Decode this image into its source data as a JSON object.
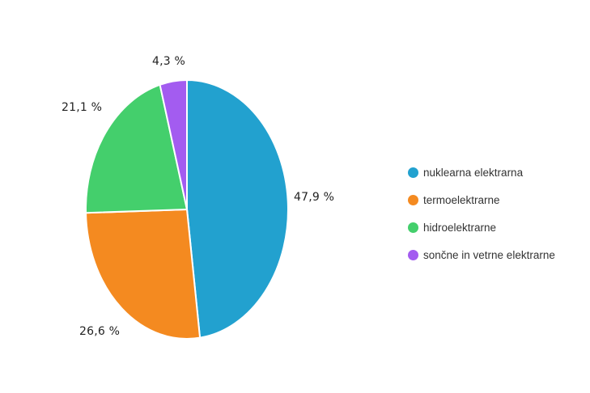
{
  "chart_data": {
    "type": "pie",
    "categories": [
      "nuklearna elektrarna",
      "termoelektrarne",
      "hidroelektrarne",
      "sončne in vetrne elektrarne"
    ],
    "values": [
      47.9,
      26.6,
      21.1,
      4.3
    ],
    "value_labels": [
      "47,9 %",
      "26,6 %",
      "21,1 %",
      "4,3 %"
    ],
    "colors": [
      "#22a1cf",
      "#f48a20",
      "#44cf6c",
      "#a35cf0"
    ],
    "start_angle_deg": 0,
    "direction": "clockwise",
    "legend_position": "right"
  }
}
